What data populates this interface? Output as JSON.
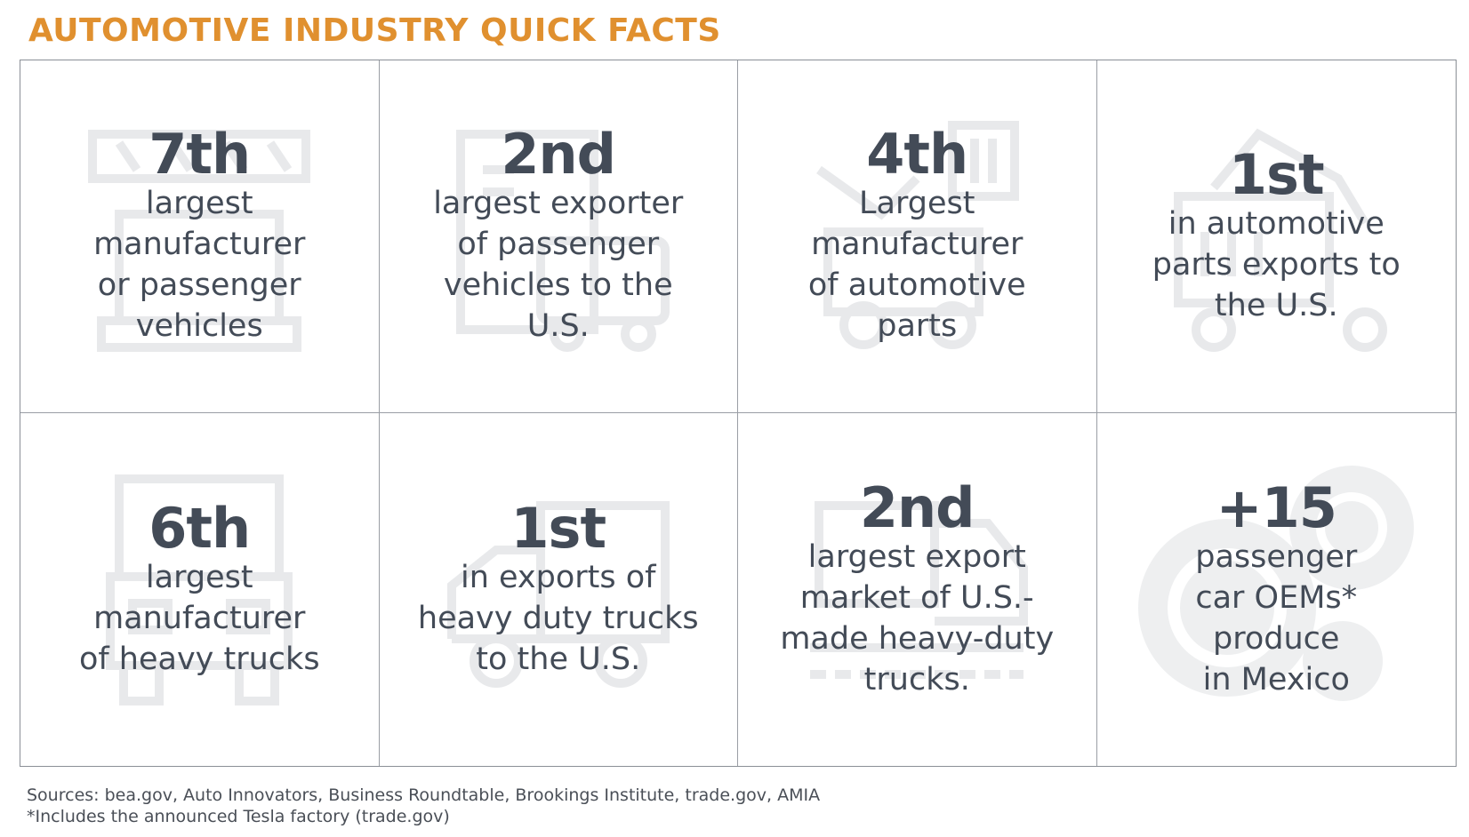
{
  "title": "AUTOMOTIVE INDUSTRY QUICK FACTS",
  "accent_color": "#e0902f",
  "text_color": "#434b57",
  "facts": [
    {
      "rank": "7th",
      "lines": [
        "largest",
        "manufacturer",
        "or passenger",
        "vehicles"
      ],
      "icon": "factory-conveyor-icon"
    },
    {
      "rank": "2nd",
      "lines": [
        "largest exporter",
        "of passenger",
        "vehicles to the",
        "U.S."
      ],
      "icon": "document-car-icon"
    },
    {
      "rank": "4th",
      "lines": [
        "Largest",
        "manufacturer",
        "of automotive",
        "parts"
      ],
      "icon": "wrench-truck-icon"
    },
    {
      "rank": "1st",
      "lines": [
        "in automotive",
        "parts exports to",
        "the U.S."
      ],
      "icon": "robot-arm-icon"
    },
    {
      "rank": "6th",
      "lines": [
        "largest",
        "manufacturer",
        "of heavy trucks"
      ],
      "icon": "truck-front-icon"
    },
    {
      "rank": "1st",
      "lines": [
        "in exports of",
        "heavy duty trucks",
        "to the U.S."
      ],
      "icon": "truck-side-icon"
    },
    {
      "rank": "2nd",
      "lines": [
        "largest export",
        "market of U.S.-",
        "made heavy-duty",
        "trucks."
      ],
      "icon": "tanker-truck-icon"
    },
    {
      "rank": "+15",
      "lines": [
        "passenger",
        "car OEMs*",
        "produce",
        "in Mexico"
      ],
      "icon": "gears-icon"
    }
  ],
  "footer": {
    "sources": "Sources: bea.gov, Auto Innovators, Business Roundtable, Brookings Institute, trade.gov, AMIA",
    "note": "*Includes the announced Tesla factory (trade.gov)"
  }
}
